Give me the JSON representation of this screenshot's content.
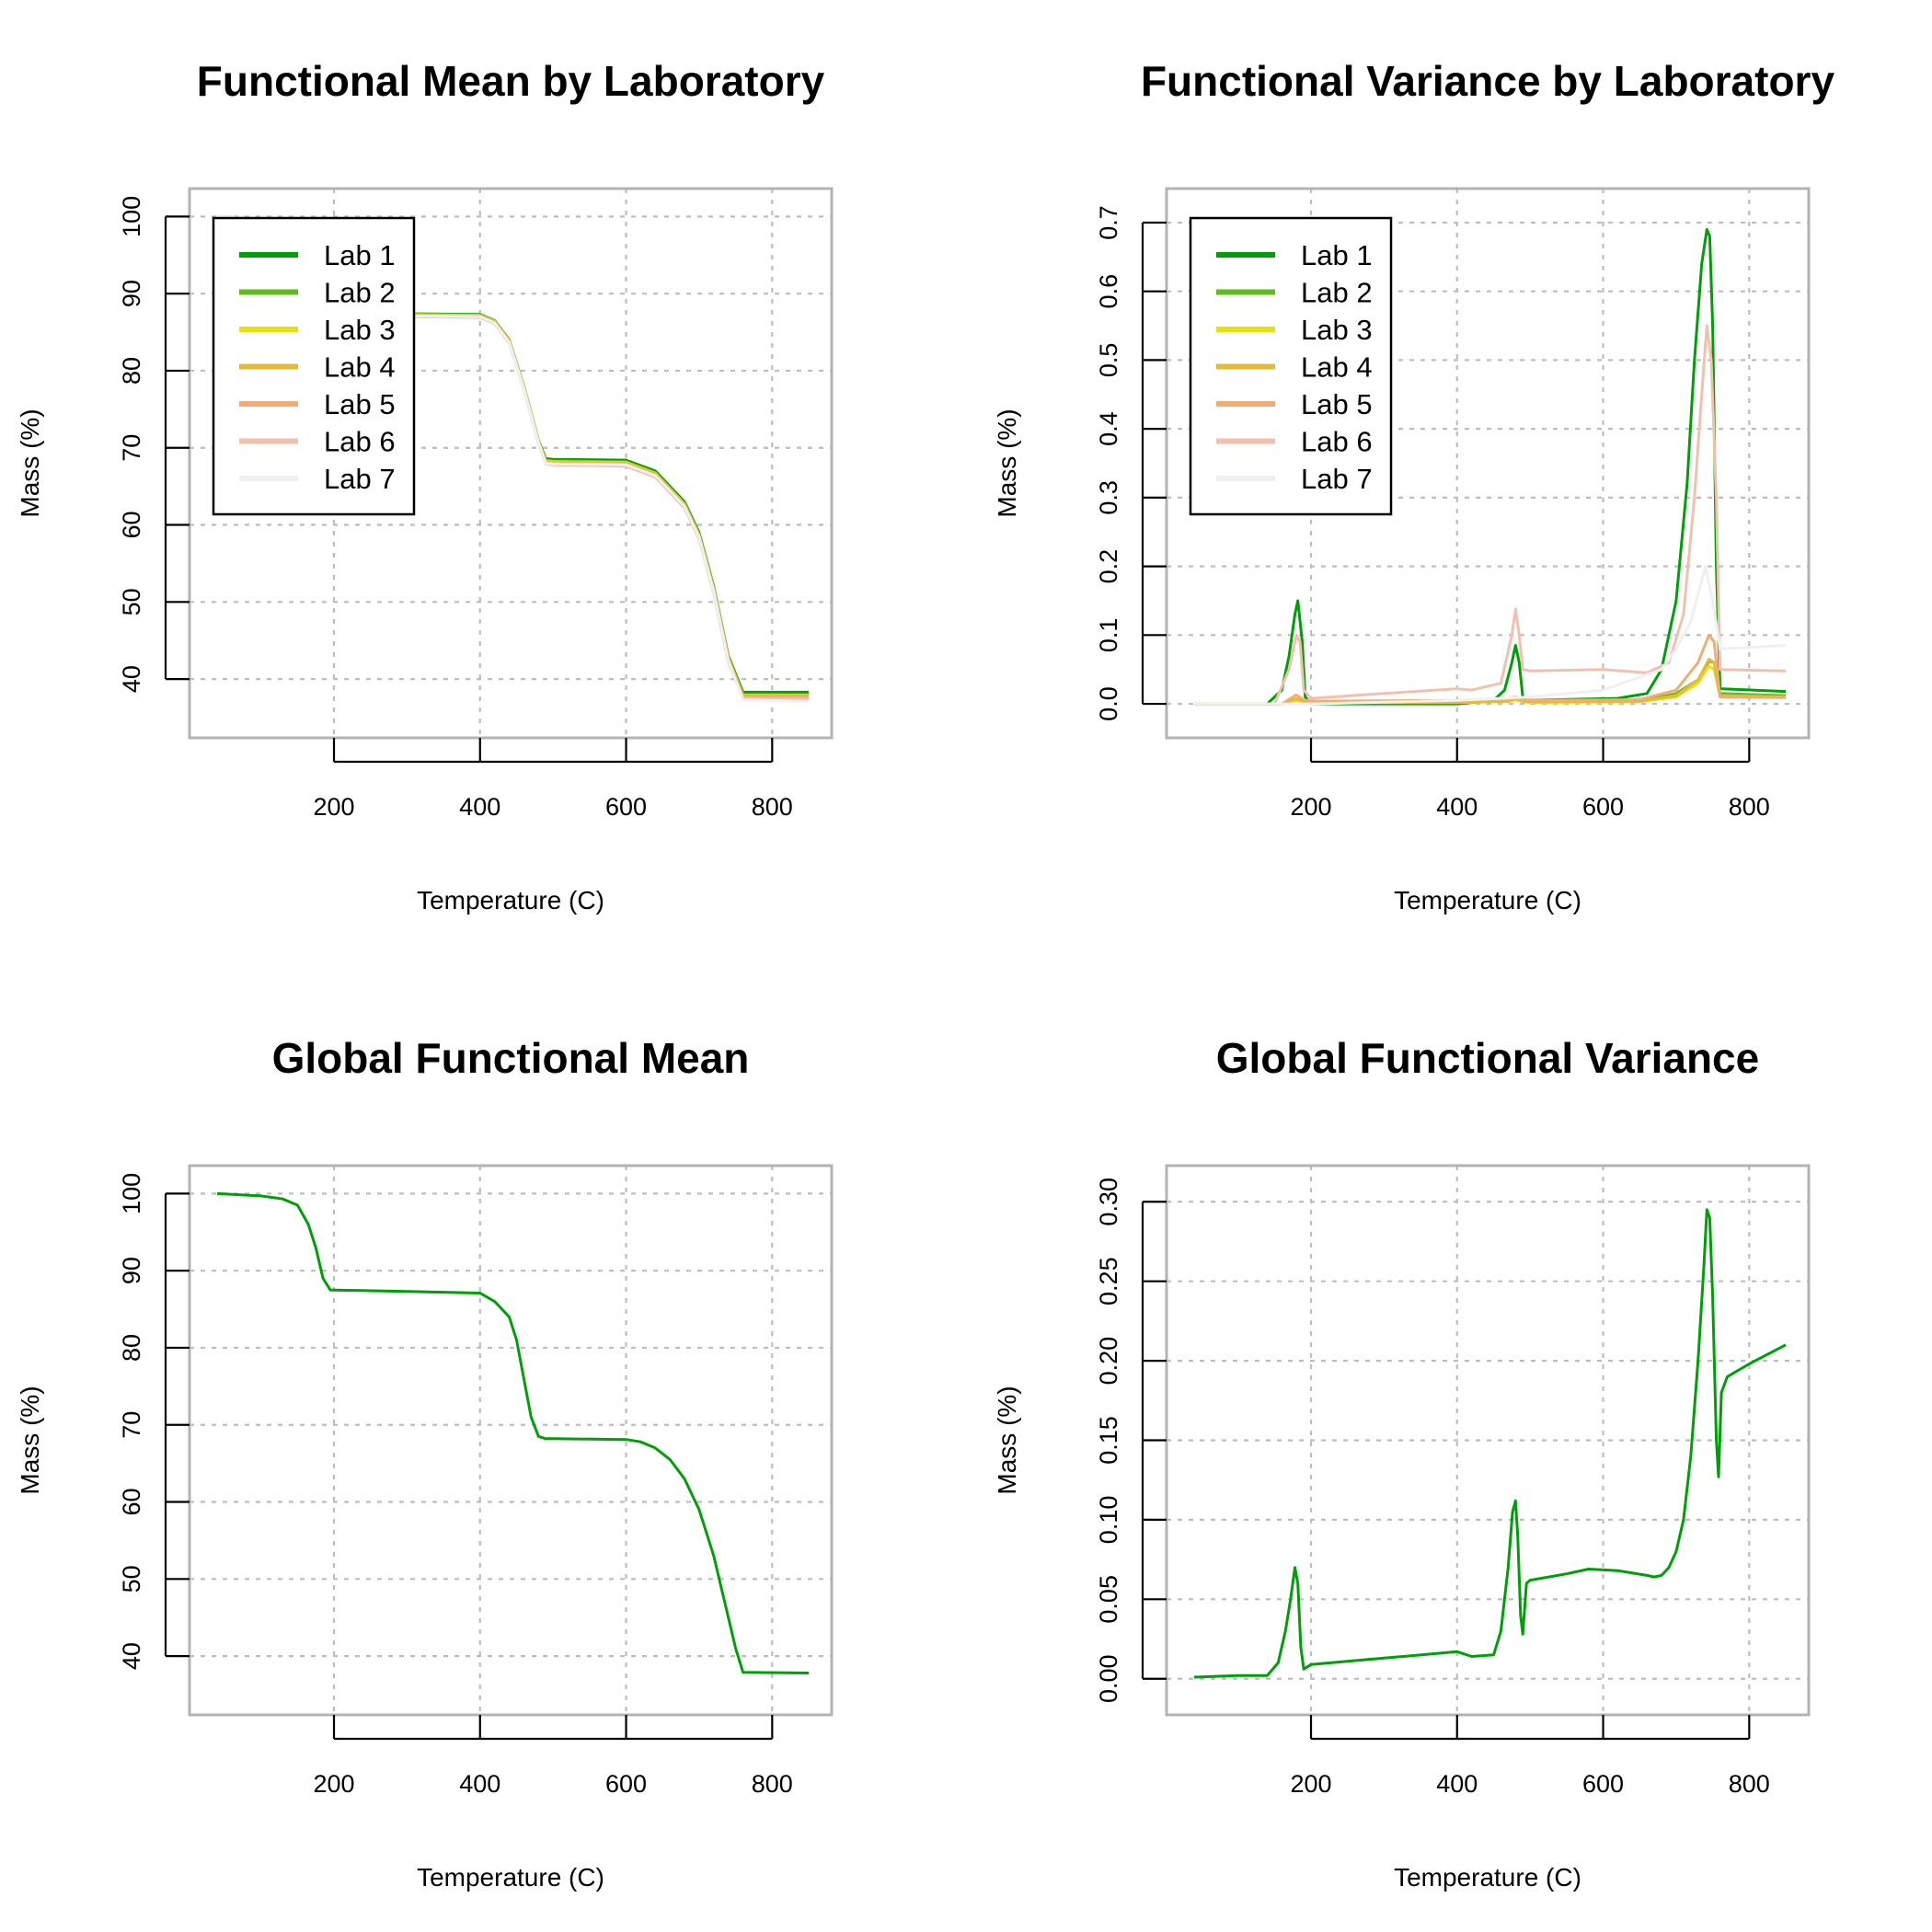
{
  "chart_data": [
    {
      "type": "line",
      "title": "Functional Mean by Laboratory",
      "xlabel": "Temperature (C)",
      "ylabel": "Mass (%)",
      "xlim": [
        40,
        850
      ],
      "ylim": [
        35,
        101
      ],
      "xticks": [
        200,
        400,
        600,
        800
      ],
      "yticks": [
        40,
        50,
        60,
        70,
        80,
        90,
        100
      ],
      "grid": true,
      "legend_position": "top-left",
      "series": [
        {
          "name": "Lab 1",
          "color": "#009E08",
          "x": [
            40,
            120,
            150,
            170,
            185,
            195,
            300,
            400,
            420,
            440,
            460,
            480,
            490,
            500,
            600,
            640,
            680,
            700,
            720,
            740,
            760,
            850
          ],
          "y": [
            100,
            99.5,
            98,
            94,
            89,
            87.6,
            87.4,
            87.3,
            86.5,
            84,
            78,
            71,
            68.6,
            68.5,
            68.4,
            67,
            63,
            59,
            52,
            43,
            38.3,
            38.3
          ]
        },
        {
          "name": "Lab 2",
          "color": "#5EBD1A",
          "x": [
            40,
            120,
            150,
            170,
            185,
            195,
            300,
            400,
            420,
            440,
            460,
            480,
            490,
            500,
            600,
            640,
            680,
            700,
            720,
            740,
            760,
            850
          ],
          "y": [
            100,
            99.5,
            98,
            94,
            89,
            87.5,
            87.3,
            87.2,
            86.4,
            83.9,
            77.9,
            70.9,
            68.4,
            68.3,
            68.2,
            66.8,
            62.8,
            58.8,
            51.8,
            42.8,
            38,
            38
          ]
        },
        {
          "name": "Lab 3",
          "color": "#E6E014",
          "x": [
            40,
            120,
            150,
            170,
            185,
            195,
            300,
            400,
            420,
            440,
            460,
            480,
            490,
            500,
            600,
            640,
            680,
            700,
            720,
            740,
            760,
            850
          ],
          "y": [
            100,
            99.5,
            98,
            94,
            89,
            87.5,
            87.3,
            87.2,
            86.4,
            83.9,
            77.9,
            70.9,
            68.3,
            68.2,
            68.1,
            66.7,
            62.7,
            58.7,
            51.7,
            42.7,
            37.9,
            37.9
          ]
        },
        {
          "name": "Lab 4",
          "color": "#E6B83C",
          "x": [
            40,
            120,
            150,
            170,
            185,
            195,
            300,
            400,
            420,
            440,
            460,
            480,
            490,
            500,
            600,
            640,
            680,
            700,
            720,
            740,
            760,
            850
          ],
          "y": [
            100,
            99.5,
            98,
            94,
            89,
            87.4,
            87.2,
            87.1,
            86.3,
            83.8,
            77.8,
            70.8,
            68.2,
            68.1,
            68,
            66.6,
            62.6,
            58.6,
            51.6,
            42.6,
            37.8,
            37.8
          ]
        },
        {
          "name": "Lab 5",
          "color": "#EFAE75",
          "x": [
            40,
            120,
            150,
            170,
            185,
            195,
            300,
            400,
            420,
            440,
            460,
            480,
            490,
            500,
            600,
            640,
            680,
            700,
            720,
            740,
            760,
            850
          ],
          "y": [
            100,
            99.5,
            98,
            94,
            89,
            87.4,
            87.2,
            87.1,
            86.3,
            83.8,
            77.8,
            70.8,
            68.1,
            68,
            67.9,
            66.5,
            62.5,
            58.5,
            51.5,
            42.5,
            37.7,
            37.7
          ]
        },
        {
          "name": "Lab 6",
          "color": "#F1C1B0",
          "x": [
            40,
            120,
            150,
            170,
            185,
            195,
            300,
            400,
            420,
            440,
            460,
            480,
            490,
            500,
            600,
            640,
            680,
            700,
            720,
            740,
            760,
            850
          ],
          "y": [
            100,
            99.5,
            98,
            94,
            89,
            87.2,
            87,
            86.9,
            86.1,
            83.6,
            77.6,
            70.6,
            67.9,
            67.8,
            67.6,
            66.2,
            62.2,
            58.2,
            51.2,
            42.2,
            37.5,
            37.4
          ]
        },
        {
          "name": "Lab 7",
          "color": "#F0F0F0",
          "x": [
            40,
            120,
            150,
            170,
            185,
            195,
            300,
            400,
            420,
            440,
            460,
            480,
            490,
            500,
            600,
            640,
            680,
            700,
            720,
            740,
            760,
            850
          ],
          "y": [
            100,
            99.5,
            98,
            94,
            89,
            87.3,
            87.1,
            87,
            86.2,
            83.7,
            77.7,
            70.7,
            68,
            67.9,
            67.8,
            66.4,
            62.4,
            58.4,
            51.4,
            42.4,
            37.3,
            37.1
          ]
        }
      ]
    },
    {
      "type": "line",
      "title": "Functional Variance by Laboratory",
      "xlabel": "Temperature (C)",
      "ylabel": "Mass (%)",
      "xlim": [
        40,
        850
      ],
      "ylim": [
        -0.02,
        0.72
      ],
      "xticks": [
        200,
        400,
        600,
        800
      ],
      "yticks": [
        0.0,
        0.1,
        0.2,
        0.3,
        0.4,
        0.5,
        0.6,
        0.7
      ],
      "ytick_labels": [
        "0.0",
        "0.1",
        "0.2",
        "0.3",
        "0.4",
        "0.5",
        "0.6",
        "0.7"
      ],
      "grid": true,
      "legend_position": "top-left",
      "series": [
        {
          "name": "Lab 1",
          "color": "#009E08",
          "x": [
            40,
            140,
            160,
            170,
            178,
            182,
            188,
            192,
            200,
            400,
            450,
            465,
            475,
            480,
            485,
            490,
            495,
            620,
            660,
            680,
            700,
            715,
            725,
            735,
            742,
            746,
            750,
            755,
            760,
            850
          ],
          "y": [
            0,
            0,
            0.02,
            0.07,
            0.13,
            0.15,
            0.09,
            0.01,
            0,
            0,
            0.005,
            0.02,
            0.06,
            0.085,
            0.06,
            0.01,
            0.005,
            0.008,
            0.015,
            0.05,
            0.15,
            0.32,
            0.5,
            0.64,
            0.69,
            0.68,
            0.55,
            0.2,
            0.022,
            0.018
          ]
        },
        {
          "name": "Lab 2",
          "color": "#5EBD1A",
          "x": [
            40,
            160,
            180,
            190,
            200,
            400,
            470,
            480,
            490,
            500,
            650,
            700,
            730,
            745,
            752,
            760,
            850
          ],
          "y": [
            0,
            0,
            0.006,
            0.004,
            0.002,
            0.002,
            0.004,
            0.008,
            0.004,
            0.003,
            0.004,
            0.015,
            0.035,
            0.062,
            0.06,
            0.015,
            0.012
          ]
        },
        {
          "name": "Lab 3",
          "color": "#E6E014",
          "x": [
            40,
            160,
            180,
            190,
            200,
            400,
            470,
            480,
            490,
            500,
            650,
            700,
            730,
            745,
            752,
            760,
            850
          ],
          "y": [
            0,
            0,
            0.005,
            0.003,
            0.002,
            0.002,
            0.003,
            0.006,
            0.003,
            0.002,
            0.003,
            0.01,
            0.03,
            0.055,
            0.05,
            0.01,
            0.01
          ]
        },
        {
          "name": "Lab 4",
          "color": "#E6B83C",
          "x": [
            40,
            160,
            180,
            190,
            200,
            400,
            470,
            480,
            490,
            500,
            650,
            700,
            730,
            745,
            752,
            760,
            850
          ],
          "y": [
            0,
            0,
            0.008,
            0.004,
            0.002,
            0.002,
            0.004,
            0.008,
            0.004,
            0.003,
            0.004,
            0.012,
            0.035,
            0.065,
            0.06,
            0.012,
            0.01
          ]
        },
        {
          "name": "Lab 5",
          "color": "#EFAE75",
          "x": [
            40,
            160,
            180,
            190,
            200,
            400,
            470,
            480,
            490,
            500,
            650,
            700,
            730,
            745,
            752,
            760,
            850
          ],
          "y": [
            0,
            0,
            0.013,
            0.006,
            0.004,
            0.005,
            0.008,
            0.01,
            0.006,
            0.005,
            0.006,
            0.02,
            0.06,
            0.1,
            0.09,
            0.01,
            0.009
          ]
        },
        {
          "name": "Lab 6",
          "color": "#F1C1B0",
          "x": [
            40,
            150,
            170,
            180,
            185,
            190,
            200,
            300,
            400,
            420,
            460,
            475,
            480,
            485,
            490,
            500,
            600,
            660,
            690,
            710,
            725,
            735,
            742,
            748,
            755,
            760,
            850
          ],
          "y": [
            0,
            0,
            0.05,
            0.1,
            0.09,
            0.02,
            0.008,
            0.015,
            0.022,
            0.02,
            0.03,
            0.1,
            0.138,
            0.1,
            0.05,
            0.048,
            0.05,
            0.045,
            0.06,
            0.13,
            0.3,
            0.45,
            0.55,
            0.5,
            0.3,
            0.05,
            0.048
          ]
        },
        {
          "name": "Lab 7",
          "color": "#F0F0F0",
          "x": [
            40,
            200,
            400,
            500,
            600,
            680,
            700,
            720,
            740,
            750,
            760,
            800,
            850
          ],
          "y": [
            0,
            0,
            0.005,
            0.01,
            0.02,
            0.05,
            0.08,
            0.12,
            0.2,
            0.15,
            0.08,
            0.082,
            0.085
          ]
        }
      ]
    },
    {
      "type": "line",
      "title": "Global Functional Mean",
      "xlabel": "Temperature (C)",
      "ylabel": "Mass (%)",
      "xlim": [
        40,
        850
      ],
      "ylim": [
        35,
        101
      ],
      "xticks": [
        200,
        400,
        600,
        800
      ],
      "yticks": [
        40,
        50,
        60,
        70,
        80,
        90,
        100
      ],
      "grid": true,
      "series": [
        {
          "color": "#009E08",
          "x": [
            40,
            100,
            130,
            150,
            165,
            175,
            185,
            195,
            300,
            400,
            420,
            440,
            450,
            460,
            470,
            480,
            490,
            500,
            600,
            620,
            640,
            660,
            680,
            700,
            720,
            740,
            750,
            760,
            850
          ],
          "y": [
            100,
            99.7,
            99.3,
            98.5,
            96,
            93,
            89,
            87.5,
            87.3,
            87.1,
            86,
            84,
            81,
            76,
            71,
            68.5,
            68.2,
            68.2,
            68.1,
            67.8,
            67,
            65.5,
            63,
            59,
            53,
            45,
            41,
            37.9,
            37.8
          ]
        }
      ]
    },
    {
      "type": "line",
      "title": "Global Functional Variance",
      "xlabel": "Temperature (C)",
      "ylabel": "Mass (%)",
      "xlim": [
        40,
        850
      ],
      "ylim": [
        -0.01,
        0.31
      ],
      "xticks": [
        200,
        400,
        600,
        800
      ],
      "yticks": [
        0.0,
        0.05,
        0.1,
        0.15,
        0.2,
        0.25,
        0.3
      ],
      "ytick_labels": [
        "0.00",
        "0.05",
        "0.10",
        "0.15",
        "0.20",
        "0.25",
        "0.30"
      ],
      "grid": true,
      "series": [
        {
          "color": "#009E08",
          "x": [
            40,
            100,
            140,
            155,
            165,
            172,
            178,
            182,
            186,
            190,
            200,
            300,
            400,
            420,
            450,
            460,
            470,
            476,
            480,
            483,
            487,
            490,
            495,
            500,
            550,
            580,
            620,
            660,
            670,
            680,
            690,
            700,
            710,
            720,
            730,
            738,
            742,
            746,
            750,
            755,
            758,
            762,
            770,
            800,
            850
          ],
          "y": [
            0.001,
            0.002,
            0.002,
            0.01,
            0.03,
            0.05,
            0.07,
            0.06,
            0.02,
            0.006,
            0.009,
            0.013,
            0.017,
            0.014,
            0.015,
            0.03,
            0.07,
            0.105,
            0.112,
            0.09,
            0.04,
            0.028,
            0.06,
            0.062,
            0.066,
            0.069,
            0.068,
            0.065,
            0.064,
            0.065,
            0.07,
            0.08,
            0.1,
            0.14,
            0.2,
            0.26,
            0.295,
            0.29,
            0.24,
            0.15,
            0.127,
            0.18,
            0.19,
            0.198,
            0.21
          ]
        }
      ]
    }
  ]
}
